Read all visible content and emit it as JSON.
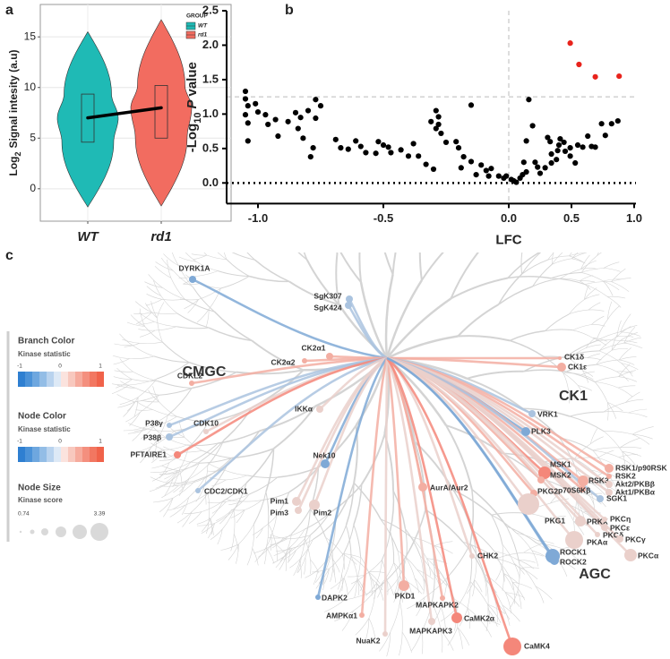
{
  "panel_labels": [
    "a",
    "b",
    "c"
  ],
  "chart_data": [
    {
      "type": "violin",
      "y_label": [
        "Log",
        "2",
        "Signal intesity (a.u)"
      ],
      "categories": [
        "WT",
        "rd1"
      ],
      "ylim": [
        -3.2,
        18.2
      ],
      "yticks": [
        0,
        5,
        10,
        15
      ],
      "grid": true,
      "legend": {
        "title": "GROUP",
        "position": "top-right"
      },
      "median_line": true,
      "series": [
        {
          "name": "WT",
          "color": "#1fbab5",
          "min": -1.8,
          "q1": 4.6,
          "median": 7.0,
          "q3": 9.35,
          "max": 15.5
        },
        {
          "name": "rd1",
          "color": "#f26c60",
          "min": -1.7,
          "q1": 5.0,
          "median": 8.0,
          "q3": 10.2,
          "max": 16.7
        }
      ]
    },
    {
      "type": "scatter",
      "x_label": "LFC",
      "y_label": [
        "-Log",
        "10",
        "P",
        "value"
      ],
      "x_scale": "segmented",
      "xlim": [
        -1.125,
        1.0
      ],
      "xticks": [
        {
          "value": -1,
          "label": "-1.0"
        },
        {
          "value": -0.5,
          "label": "-0.5"
        },
        {
          "value": 0,
          "label": "0.0"
        },
        {
          "value": 0.5,
          "label": "0.5"
        },
        {
          "value": 1,
          "label": "1.0"
        }
      ],
      "ylim": [
        -0.3,
        2.5
      ],
      "yticks": [
        {
          "value": 0,
          "label": "0.0"
        },
        0.5,
        {
          "value": 1,
          "label": "1.0"
        },
        1.5,
        {
          "value": 2,
          "label": "2.0"
        },
        2.5
      ],
      "ref_lines": [
        {
          "axis": "y",
          "value": 1.25,
          "style": "dashed"
        },
        {
          "axis": "x",
          "value": 0,
          "style": "dashed"
        },
        {
          "axis": "y",
          "value": 0,
          "style": "dotted"
        }
      ],
      "series": [
        {
          "color": "#000000",
          "x": [
            -1.05,
            -1.05,
            -1.04,
            -1.05,
            -1.04,
            -1.01,
            -1.0,
            -0.97,
            -1.04,
            -0.96,
            -0.93,
            -0.92,
            -0.88,
            -0.85,
            -0.84,
            -0.83,
            -0.82,
            -0.8,
            -0.77,
            -0.77,
            -0.75,
            -0.79,
            -0.78,
            -0.69,
            -0.67,
            -0.64,
            -0.61,
            -0.59,
            -0.57,
            -0.53,
            -0.52,
            -0.5,
            -0.48,
            -0.47,
            -0.43,
            -0.4,
            -0.38,
            -0.36,
            -0.33,
            -0.3,
            -0.31,
            -0.29,
            -0.28,
            -0.28,
            -0.27,
            -0.29,
            -0.25,
            -0.21,
            -0.2,
            -0.19,
            -0.18,
            -0.15,
            -0.15,
            -0.13,
            -0.11,
            -0.09,
            -0.08,
            -0.07,
            -0.04,
            -0.02,
            -0.01,
            0.02,
            0.04,
            0.06,
            0.09,
            0.11,
            0.14,
            0.12,
            0.14,
            0.16,
            0.19,
            0.21,
            0.23,
            0.25,
            0.29,
            0.31,
            0.33,
            0.34,
            0.34,
            0.38,
            0.39,
            0.4,
            0.41,
            0.44,
            0.45,
            0.49,
            0.49,
            0.53,
            0.55,
            0.59,
            0.63,
            0.66,
            0.69,
            0.74,
            0.77,
            0.82,
            0.87
          ],
          "values": [
            1.33,
            1.22,
            1.12,
            0.99,
            0.87,
            1.15,
            1.03,
            0.99,
            0.61,
            0.85,
            0.92,
            0.68,
            0.89,
            1.02,
            0.79,
            0.95,
            0.65,
            1.05,
            0.94,
            1.21,
            1.12,
            0.38,
            0.51,
            0.63,
            0.51,
            0.49,
            0.61,
            0.53,
            0.44,
            0.43,
            0.6,
            0.55,
            0.52,
            0.44,
            0.48,
            0.39,
            0.57,
            0.39,
            0.27,
            0.2,
            0.89,
            1.05,
            0.96,
            0.85,
            0.72,
            0.79,
            0.59,
            0.6,
            0.51,
            0.22,
            0.38,
            0.31,
            1.13,
            0.12,
            0.26,
            0.18,
            0.1,
            0.21,
            0.1,
            0.07,
            0.1,
            0.05,
            0.03,
            0.01,
            0.07,
            0.12,
            0.16,
            0.3,
            0.61,
            1.21,
            0.83,
            0.3,
            0.23,
            0.14,
            0.22,
            0.66,
            0.6,
            0.42,
            0.29,
            0.34,
            0.47,
            0.55,
            0.64,
            0.59,
            0.46,
            0.51,
            0.39,
            0.29,
            0.55,
            0.52,
            0.68,
            0.53,
            0.52,
            0.86,
            0.69,
            0.86,
            0.9
          ]
        },
        {
          "color": "#e8231c",
          "x": [
            0.49,
            0.56,
            0.69,
            0.88
          ],
          "values": [
            2.03,
            1.72,
            1.54,
            1.55
          ]
        }
      ]
    }
  ],
  "kinome": {
    "groups": [
      "CMGC",
      "CK1",
      "AGC"
    ],
    "legend": {
      "branch_color": {
        "title": "Branch Color",
        "subtitle": "Kinase statistic",
        "ticks": [
          -1,
          0,
          1
        ]
      },
      "node_color": {
        "title": "Node Color",
        "subtitle": "Kinase statistic",
        "ticks": [
          -1,
          0,
          1
        ]
      },
      "node_size": {
        "title": "Node Size",
        "subtitle": "Kinase score",
        "range": [
          0.74,
          3.39
        ]
      }
    },
    "nodes": [
      {
        "label": "DYRK1A",
        "color": "#7fa9d6"
      },
      {
        "label": "SgK307",
        "color": "#aac3df"
      },
      {
        "label": "SgK424",
        "color": "#aac3df"
      },
      {
        "label": "CK2α1",
        "color": "#f3aea2"
      },
      {
        "label": "CK2α2",
        "color": "#f3aea2"
      },
      {
        "label": "CDKL2",
        "color": "#f3aea2"
      },
      {
        "label": "CDK10",
        "color": "#ead0cb"
      },
      {
        "label": "P38γ",
        "color": "#aac3df"
      },
      {
        "label": "P38β",
        "color": "#aac3df"
      },
      {
        "label": "PFTAIRE1",
        "color": "#f4877a"
      },
      {
        "label": "CDC2/CDK1",
        "color": "#aac3df"
      },
      {
        "label": "IKKα",
        "color": "#ead0cb"
      },
      {
        "label": "Nek10",
        "color": "#7fa9d6"
      },
      {
        "label": "Pim1",
        "color": "#ead0cb"
      },
      {
        "label": "Pim3",
        "color": "#ead0cb"
      },
      {
        "label": "Pim2",
        "color": "#ead0cb"
      },
      {
        "label": "AurA/Aur2",
        "color": "#f3aea2"
      },
      {
        "label": "CHK2",
        "color": "#ead0cb"
      },
      {
        "label": "DAPK2",
        "color": "#7fa9d6"
      },
      {
        "label": "AMPKα1",
        "color": "#f3aea2"
      },
      {
        "label": "PKD1",
        "color": "#f3aea2"
      },
      {
        "label": "MAPKAPK2",
        "color": "#f3aea2"
      },
      {
        "label": "NuaK2",
        "color": "#ead0cb"
      },
      {
        "label": "MAPKAPK3",
        "color": "#ead0cb"
      },
      {
        "label": "CaMK2α",
        "color": "#f4877a"
      },
      {
        "label": "CaMK4",
        "color": "#f4877a"
      },
      {
        "label": "CK1δ",
        "color": "#f3aea2"
      },
      {
        "label": "CK1ε",
        "color": "#f3aea2"
      },
      {
        "label": "VRK1",
        "color": "#aac3df"
      },
      {
        "label": "PLK3",
        "color": "#7fa9d6"
      },
      {
        "label": "MSK1",
        "color": "#f4877a"
      },
      {
        "label": "MSK2",
        "color": "#f3aea2"
      },
      {
        "label": "RSK3",
        "color": "#f3aea2"
      },
      {
        "label": "RSK1/p90RSK",
        "color": "#f3aea2"
      },
      {
        "label": "RSK2",
        "color": "#f3aea2"
      },
      {
        "label": "Akt2/PKBβ",
        "color": "#ead0cb"
      },
      {
        "label": "Akt1/PKBα",
        "color": "#ead0cb"
      },
      {
        "label": "p70S6Kβ",
        "color": "#f3aea2"
      },
      {
        "label": "SGK1",
        "color": "#aac3df"
      },
      {
        "label": "PKG2",
        "color": "#f3aea2"
      },
      {
        "label": "PKG1",
        "color": "#ead0cb"
      },
      {
        "label": "PRKX",
        "color": "#ead0cb"
      },
      {
        "label": "PKCη",
        "color": "#ead0cb"
      },
      {
        "label": "PKCε",
        "color": "#ead0cb"
      },
      {
        "label": "PKCδ",
        "color": "#ead0cb"
      },
      {
        "label": "PKCγ",
        "color": "#ead0cb"
      },
      {
        "label": "PKAα",
        "color": "#ead0cb"
      },
      {
        "label": "PKCα",
        "color": "#ead0cb"
      },
      {
        "label": "ROCK1",
        "color": "#7fa9d6"
      },
      {
        "label": "ROCK2",
        "color": "#7fa9d6"
      }
    ]
  }
}
